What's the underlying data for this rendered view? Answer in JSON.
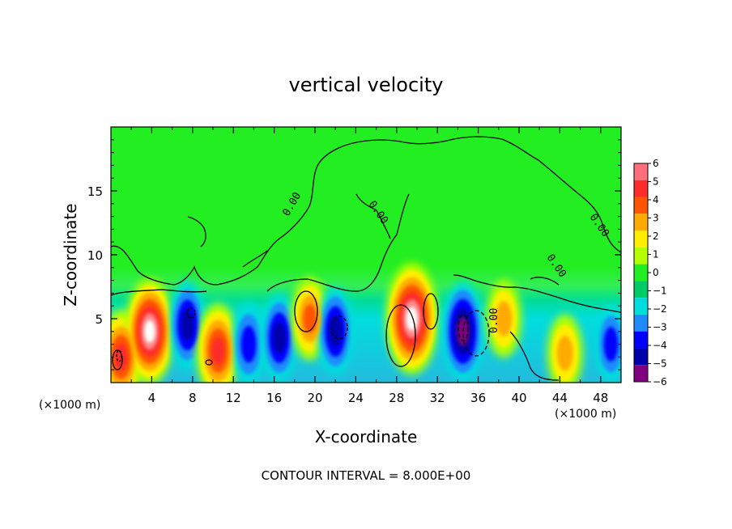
{
  "chart_data": {
    "type": "heatmap",
    "title": "vertical velocity",
    "xlabel": "X-coordinate",
    "ylabel": "Z-coordinate",
    "x_unit_left": "(×1000 m)",
    "x_unit_right": "(×1000 m)",
    "xlim": [
      0,
      50
    ],
    "ylim": [
      0,
      20
    ],
    "x_ticks": [
      4,
      8,
      12,
      16,
      20,
      24,
      28,
      32,
      36,
      40,
      44,
      48
    ],
    "y_ticks": [
      5,
      10,
      15
    ],
    "colorbar": {
      "levels": [
        6,
        5,
        4,
        3,
        2,
        1,
        0,
        -1,
        -2,
        -3,
        -4,
        -5,
        -6
      ],
      "colors": [
        "#ff6e7a",
        "#ff2a2a",
        "#ff5500",
        "#ffaa00",
        "#ffee00",
        "#b4ff00",
        "#22ee22",
        "#00cc66",
        "#00dddd",
        "#1e8cff",
        "#0000ff",
        "#0000aa",
        "#800080"
      ]
    },
    "contour_labels": [
      "0.00",
      "0.00",
      "0.00",
      "0.00",
      "0.00"
    ],
    "footer": "CONTOUR INTERVAL = 8.000E+00",
    "features": [
      {
        "type": "updraft",
        "x": 1.0,
        "z": 2.0,
        "peak": 7
      },
      {
        "type": "updraft",
        "x": 3.8,
        "z": 4.0,
        "peak": 9
      },
      {
        "type": "downdraft",
        "x": 7.5,
        "z": 4.5,
        "peak": -6
      },
      {
        "type": "updraft",
        "x": 10.5,
        "z": 2.5,
        "peak": 7
      },
      {
        "type": "downdraft",
        "x": 13.5,
        "z": 3.0,
        "peak": -5
      },
      {
        "type": "downdraft",
        "x": 16.5,
        "z": 3.5,
        "peak": -6
      },
      {
        "type": "updraft",
        "x": 19.5,
        "z": 5.0,
        "peak": 5
      },
      {
        "type": "downdraft",
        "x": 22.0,
        "z": 4.0,
        "peak": -6
      },
      {
        "type": "updraft",
        "x": 29.5,
        "z": 5.0,
        "peak": 10
      },
      {
        "type": "downdraft",
        "x": 34.5,
        "z": 4.0,
        "peak": -8
      },
      {
        "type": "updraft",
        "x": 38.5,
        "z": 5.0,
        "peak": 4
      },
      {
        "type": "updraft",
        "x": 44.5,
        "z": 2.3,
        "peak": 4
      },
      {
        "type": "downdraft",
        "x": 49.0,
        "z": 3.0,
        "peak": -4
      }
    ]
  }
}
